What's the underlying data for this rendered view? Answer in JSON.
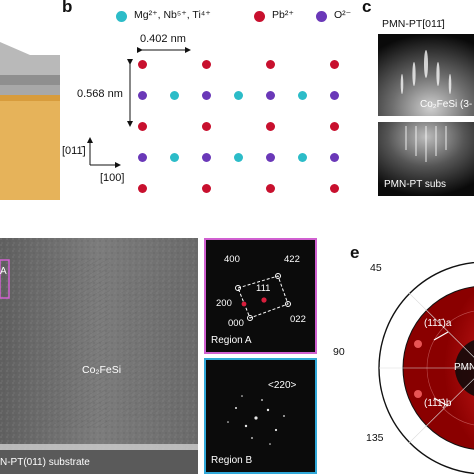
{
  "panels": {
    "b": "b",
    "c": "c",
    "e": "e"
  },
  "lattice": {
    "legend": [
      {
        "label": "Mg²⁺, Nb⁵⁺, Ti⁴⁺",
        "color": "#2cbcc8"
      },
      {
        "label": "Pb²⁺",
        "color": "#c8102e"
      },
      {
        "label": "O²⁻",
        "color": "#6a38b8"
      }
    ],
    "dim_horizontal": "0.402 nm",
    "dim_vertical": "0.568 nm",
    "axis_up": "[011̄]",
    "axis_right": "[100]"
  },
  "rheed": {
    "top_title": "PMN-PT[011̄]",
    "top_label": "Co₂FeSi (3-",
    "bottom_label": "PMN-PT subs"
  },
  "tem": {
    "region_marker": "A",
    "film": "Co₂FeSi",
    "substrate": "N-PT(011) substrate"
  },
  "fft_a": {
    "labels": [
      "400",
      "422",
      "111",
      "200",
      "000",
      "022"
    ],
    "region": "Region A"
  },
  "fft_b": {
    "label": "<220>",
    "region": "Region B"
  },
  "pole": {
    "angles": [
      "45",
      "90",
      "135"
    ],
    "peak_labels": [
      "(111̄)a",
      "(111̄)b"
    ],
    "center": "PMN"
  }
}
